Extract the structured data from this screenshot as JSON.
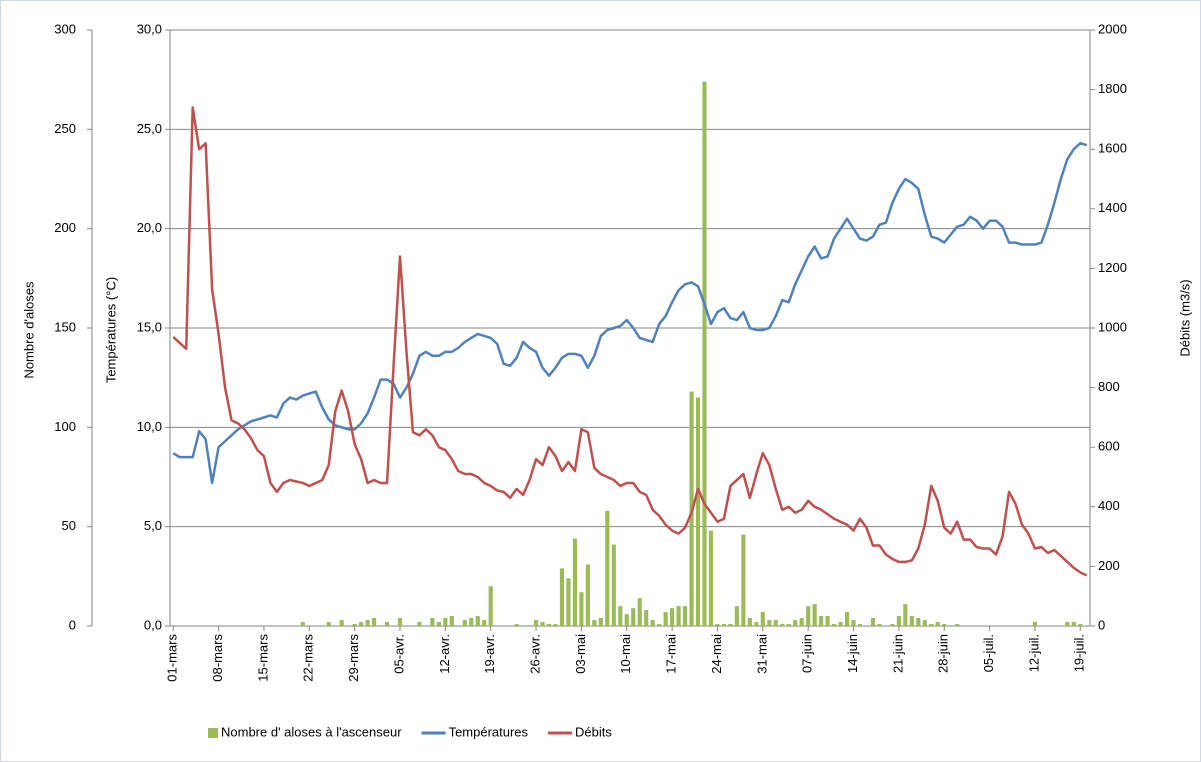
{
  "chart_data": {
    "type": "combo",
    "categories": [
      "01-mars",
      null,
      null,
      null,
      null,
      null,
      null,
      "08-mars",
      null,
      null,
      null,
      null,
      null,
      null,
      "15-mars",
      null,
      null,
      null,
      null,
      null,
      null,
      "22-mars",
      null,
      null,
      null,
      null,
      null,
      null,
      "29-mars",
      null,
      null,
      null,
      null,
      null,
      null,
      "05-avr.",
      null,
      null,
      null,
      null,
      null,
      null,
      "12-avr.",
      null,
      null,
      null,
      null,
      null,
      null,
      "19-avr.",
      null,
      null,
      null,
      null,
      null,
      null,
      "26-avr.",
      null,
      null,
      null,
      null,
      null,
      null,
      "03-mai",
      null,
      null,
      null,
      null,
      null,
      null,
      "10-mai",
      null,
      null,
      null,
      null,
      null,
      null,
      "17-mai",
      null,
      null,
      null,
      null,
      null,
      null,
      "24-mai",
      null,
      null,
      null,
      null,
      null,
      null,
      "31-mai",
      null,
      null,
      null,
      null,
      null,
      null,
      "07-juin",
      null,
      null,
      null,
      null,
      null,
      null,
      "14-juin",
      null,
      null,
      null,
      null,
      null,
      null,
      "21-juin",
      null,
      null,
      null,
      null,
      null,
      null,
      "28-juin",
      null,
      null,
      null,
      null,
      null,
      null,
      "05-juil.",
      null,
      null,
      null,
      null,
      null,
      null,
      "12-juil.",
      null,
      null,
      null,
      null,
      null,
      null,
      "19-juil.",
      null
    ],
    "ylabel": "Températures (°C)",
    "ylim": [
      0,
      30
    ],
    "yticks": [
      {
        "value": 0,
        "label": "0,0"
      },
      {
        "value": 5,
        "label": "5,0"
      },
      {
        "value": 10,
        "label": "10,0"
      },
      {
        "value": 15,
        "label": "15,0"
      },
      {
        "value": 20,
        "label": "20,0"
      },
      {
        "value": 25,
        "label": "25,0"
      },
      {
        "value": 30,
        "label": "30,0"
      }
    ],
    "y2label": "Débits (m3/s)",
    "y2lim": [
      0,
      2000
    ],
    "y2ticks": [
      0,
      200,
      400,
      600,
      800,
      1000,
      1200,
      1400,
      1600,
      1800,
      2000
    ],
    "y3label": "Nombre d'aloses",
    "y3lim": [
      0,
      300
    ],
    "y3ticks": [
      0,
      50,
      100,
      150,
      200,
      250,
      300
    ],
    "grid": true,
    "legend": "bottom",
    "series": [
      {
        "name": "Nombre d' aloses à l'ascenseur",
        "type": "bar",
        "axis": "y3",
        "color": "#9bbb59",
        "values": [
          0,
          0,
          0,
          0,
          0,
          0,
          0,
          0,
          0,
          0,
          0,
          0,
          0,
          0,
          0,
          0,
          0,
          0,
          0,
          0,
          2,
          0,
          0,
          0,
          2,
          0,
          3,
          0,
          1,
          2,
          3,
          4,
          0,
          2,
          0,
          4,
          0,
          0,
          2,
          0,
          4,
          2,
          4,
          5,
          0,
          3,
          4,
          5,
          3,
          20,
          0,
          0,
          0,
          1,
          0,
          0,
          3,
          2,
          1,
          1,
          29,
          24,
          44,
          17,
          31,
          3,
          4,
          58,
          41,
          10,
          6,
          9,
          14,
          8,
          3,
          1,
          7,
          9,
          10,
          10,
          118,
          115,
          274,
          48,
          1,
          1,
          1,
          10,
          46,
          4,
          2,
          7,
          3,
          3,
          1,
          1,
          3,
          4,
          10,
          11,
          5,
          5,
          1,
          2,
          7,
          3,
          1,
          0,
          4,
          1,
          0,
          1,
          5,
          11,
          5,
          4,
          3,
          1,
          2,
          1,
          0,
          1,
          0,
          0,
          0,
          0,
          0,
          0,
          0,
          0,
          0,
          0,
          0,
          2,
          0,
          0,
          0,
          0,
          2,
          2,
          1,
          0
        ]
      },
      {
        "name": "Températures",
        "type": "line",
        "axis": "y",
        "color": "#4f81bd",
        "values": [
          8.7,
          8.5,
          8.5,
          8.5,
          9.8,
          9.4,
          7.2,
          9.0,
          9.3,
          9.6,
          9.9,
          10.1,
          10.3,
          10.4,
          10.5,
          10.6,
          10.5,
          11.2,
          11.5,
          11.4,
          11.6,
          11.7,
          11.8,
          11.0,
          10.4,
          10.1,
          10.0,
          9.9,
          9.9,
          10.2,
          10.7,
          11.5,
          12.4,
          12.4,
          12.2,
          11.5,
          12.0,
          12.7,
          13.6,
          13.8,
          13.6,
          13.6,
          13.8,
          13.8,
          14.0,
          14.3,
          14.5,
          14.7,
          14.6,
          14.5,
          14.2,
          13.2,
          13.1,
          13.5,
          14.3,
          14.0,
          13.8,
          13.0,
          12.6,
          13.0,
          13.5,
          13.7,
          13.7,
          13.6,
          13.0,
          13.6,
          14.6,
          14.9,
          15.0,
          15.1,
          15.4,
          15.0,
          14.5,
          14.4,
          14.3,
          15.2,
          15.6,
          16.3,
          16.9,
          17.2,
          17.3,
          17.1,
          16.2,
          15.2,
          15.8,
          16.0,
          15.5,
          15.4,
          15.8,
          15.0,
          14.9,
          14.9,
          15.0,
          15.6,
          16.4,
          16.3,
          17.2,
          17.9,
          18.6,
          19.1,
          18.5,
          18.6,
          19.5,
          20.0,
          20.5,
          20.0,
          19.5,
          19.4,
          19.6,
          20.2,
          20.3,
          21.3,
          22.0,
          22.5,
          22.3,
          22.0,
          20.7,
          19.6,
          19.5,
          19.3,
          19.7,
          20.1,
          20.2,
          20.6,
          20.4,
          20.0,
          20.4,
          20.4,
          20.1,
          19.3,
          19.3,
          19.2,
          19.2,
          19.2,
          19.3,
          20.2,
          21.3,
          22.5,
          23.5,
          24.0,
          24.3,
          24.2
        ]
      },
      {
        "name": "Débits",
        "type": "line",
        "axis": "y2",
        "color": "#c0504d",
        "values": [
          970,
          950,
          930,
          1740,
          1600,
          1620,
          1130,
          980,
          800,
          690,
          680,
          660,
          630,
          590,
          570,
          480,
          450,
          480,
          490,
          485,
          480,
          470,
          480,
          490,
          540,
          720,
          790,
          720,
          610,
          560,
          480,
          490,
          480,
          480,
          870,
          1240,
          920,
          650,
          640,
          660,
          640,
          600,
          590,
          560,
          520,
          510,
          510,
          500,
          480,
          470,
          455,
          450,
          430,
          460,
          440,
          490,
          560,
          540,
          600,
          570,
          520,
          550,
          520,
          660,
          650,
          530,
          510,
          500,
          490,
          470,
          480,
          480,
          450,
          440,
          390,
          370,
          340,
          320,
          310,
          330,
          380,
          460,
          410,
          380,
          350,
          360,
          470,
          490,
          510,
          430,
          510,
          580,
          540,
          460,
          390,
          400,
          380,
          390,
          420,
          400,
          390,
          375,
          360,
          350,
          340,
          320,
          360,
          330,
          270,
          270,
          240,
          225,
          215,
          215,
          220,
          260,
          340,
          470,
          420,
          330,
          310,
          350,
          290,
          290,
          265,
          260,
          260,
          240,
          300,
          450,
          410,
          340,
          310,
          260,
          265,
          245,
          255,
          235,
          215,
          195,
          180,
          170
        ]
      }
    ]
  }
}
